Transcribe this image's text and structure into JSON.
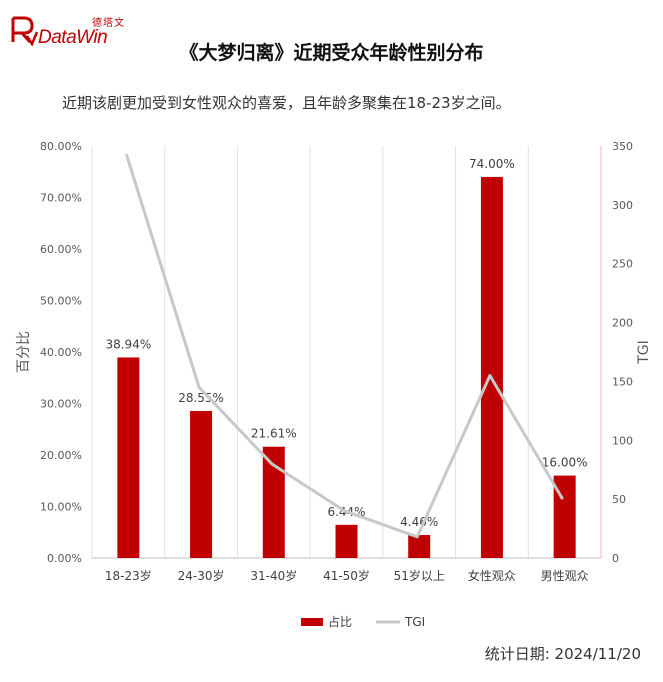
{
  "header": {
    "logo_cn": "德塔文",
    "logo_en": "DataWin",
    "title": "《大梦归离》近期受众年龄性别分布",
    "subtitle": "近期该剧更加受到女性观众的喜爱，且年龄多聚集在18-23岁之间。"
  },
  "footer": {
    "date_label": "统计日期:",
    "date_value": "2024/11/20"
  },
  "colors": {
    "bar": "#c00000",
    "line": "#c8c8c8",
    "axis_right": "#f4b6b6",
    "grid": "#e2e2e2"
  },
  "chart_data": {
    "type": "bar",
    "categories": [
      "18-23岁",
      "24-30岁",
      "31-40岁",
      "41-50岁",
      "51岁以上",
      "女性观众",
      "男性观众"
    ],
    "series": [
      {
        "name": "占比",
        "type": "bar",
        "axis": "left",
        "values": [
          38.94,
          28.55,
          21.61,
          6.44,
          4.46,
          74.0,
          16.0
        ],
        "labels": [
          "38.94%",
          "28.55%",
          "21.61%",
          "6.44%",
          "4.46%",
          "74.00%",
          "16.00%"
        ]
      },
      {
        "name": "TGI",
        "type": "line",
        "axis": "right",
        "values": [
          343,
          145,
          80,
          40,
          18,
          155,
          50
        ]
      }
    ],
    "ylabel": "百分比",
    "y2label": "TGI",
    "ylim": [
      0,
      80
    ],
    "y2lim": [
      0,
      350
    ],
    "yticks": [
      "0.00%",
      "10.00%",
      "20.00%",
      "30.00%",
      "40.00%",
      "50.00%",
      "60.00%",
      "70.00%",
      "80.00%"
    ],
    "y2ticks": [
      "0",
      "50",
      "100",
      "150",
      "200",
      "250",
      "300",
      "350"
    ],
    "grid": "vertical",
    "legend": "bottom-center"
  }
}
